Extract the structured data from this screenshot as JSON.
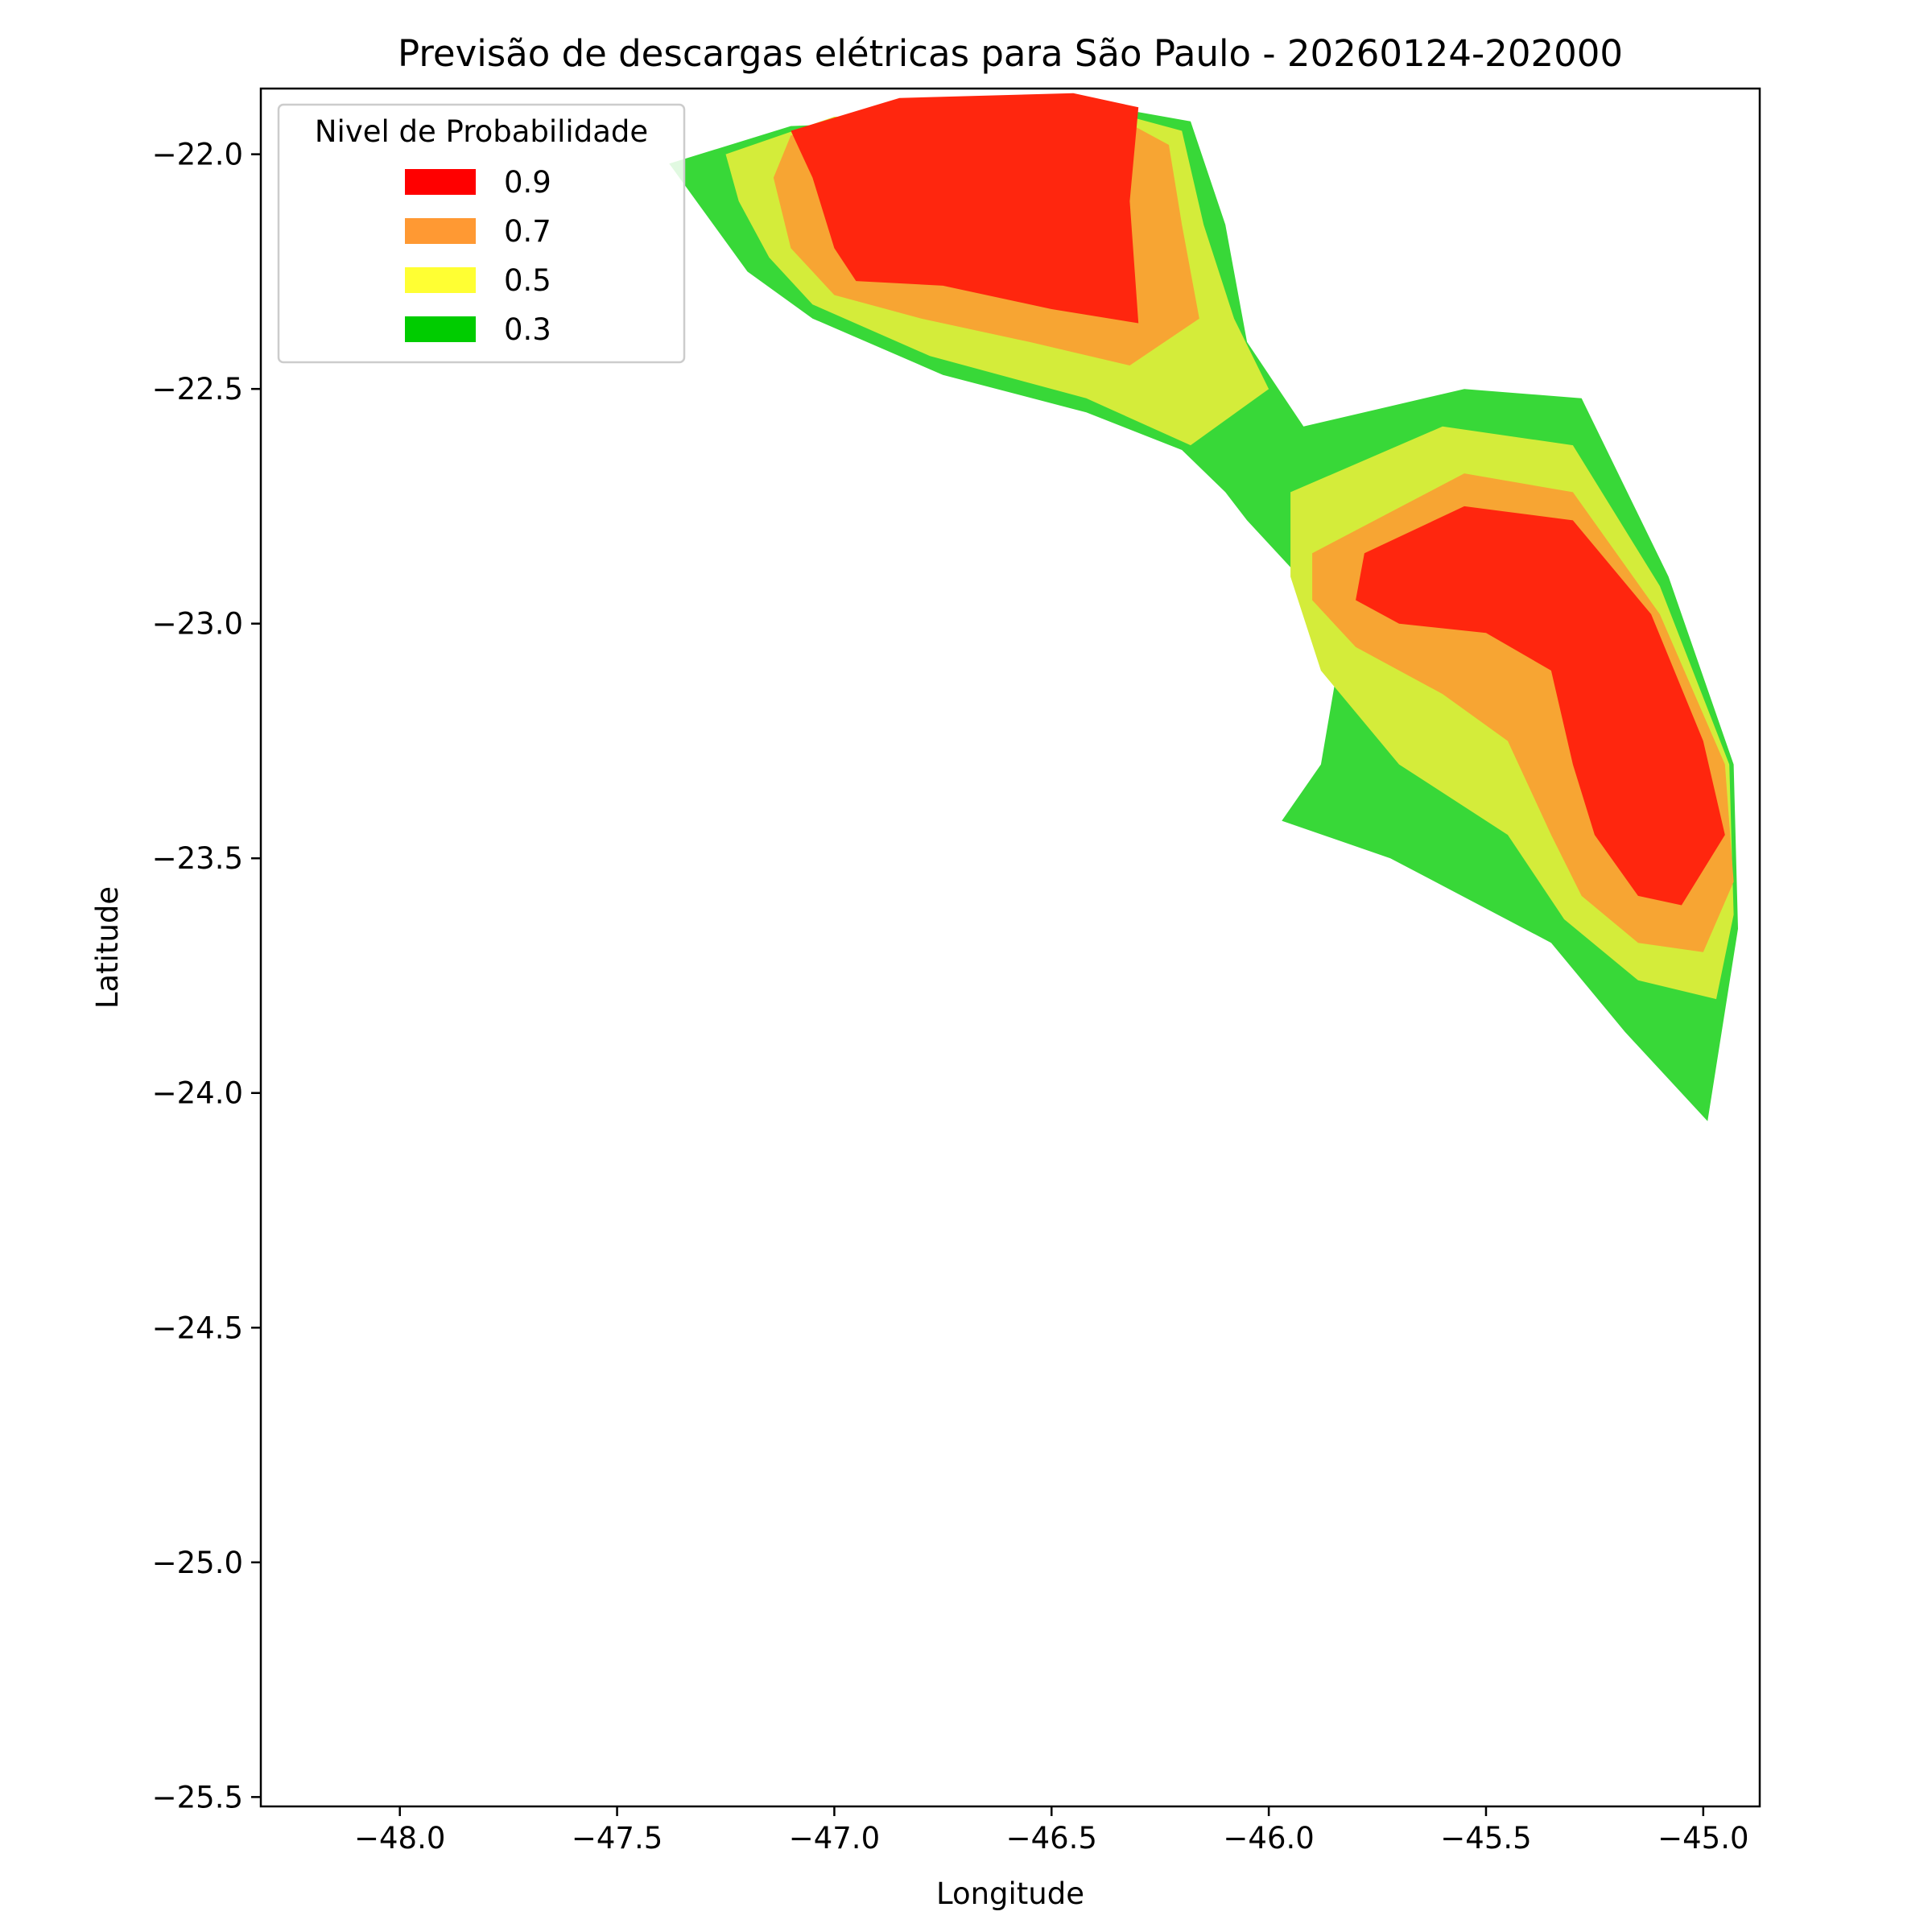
{
  "chart_data": {
    "type": "filled-contour-map",
    "title": "Previsão de descargas elétricas para São Paulo - 20260124-202000",
    "xlabel": "Longitude",
    "ylabel": "Latitude",
    "xlim": [
      -48.32,
      -44.87
    ],
    "ylim": [
      -25.52,
      -21.86
    ],
    "x_ticks": [
      -48.0,
      -47.5,
      -47.0,
      -46.5,
      -46.0,
      -45.5,
      -45.0
    ],
    "x_tick_labels": [
      "−48.0",
      "−47.5",
      "−47.0",
      "−46.5",
      "−46.0",
      "−45.5",
      "−45.0"
    ],
    "y_ticks": [
      -22.0,
      -22.5,
      -23.0,
      -23.5,
      -24.0,
      -24.5,
      -25.0,
      -25.5
    ],
    "y_tick_labels": [
      "−22.0",
      "−22.5",
      "−23.0",
      "−23.5",
      "−24.0",
      "−24.5",
      "−25.0",
      "−25.5"
    ],
    "grid": false,
    "legend": {
      "title": "Nivel de Probabilidade",
      "placement": "upper-left",
      "entries": [
        {
          "label": "0.9",
          "color": "#ff0000"
        },
        {
          "label": "0.7",
          "color": "#ff9933"
        },
        {
          "label": "0.5",
          "color": "#ffff33"
        },
        {
          "label": "0.3",
          "color": "#00cc00"
        }
      ]
    },
    "levels": [
      {
        "level": 0.3,
        "color": "#38d838",
        "regions": [
          [
            [
              -47.38,
              -22.02
            ],
            [
              -47.1,
              -21.94
            ],
            [
              -46.3,
              -21.91
            ],
            [
              -46.18,
              -21.93
            ],
            [
              -46.1,
              -22.15
            ],
            [
              -46.05,
              -22.4
            ],
            [
              -45.92,
              -22.58
            ],
            [
              -45.55,
              -22.5
            ],
            [
              -45.28,
              -22.52
            ],
            [
              -45.08,
              -22.9
            ],
            [
              -44.93,
              -23.3
            ],
            [
              -44.92,
              -23.65
            ],
            [
              -44.99,
              -24.06
            ],
            [
              -45.18,
              -23.87
            ],
            [
              -45.35,
              -23.68
            ],
            [
              -45.72,
              -23.5
            ],
            [
              -45.97,
              -23.42
            ],
            [
              -45.88,
              -23.3
            ],
            [
              -45.83,
              -23.03
            ],
            [
              -45.88,
              -22.95
            ],
            [
              -46.05,
              -22.78
            ],
            [
              -46.1,
              -22.72
            ],
            [
              -46.2,
              -22.63
            ],
            [
              -46.42,
              -22.55
            ],
            [
              -46.75,
              -22.47
            ],
            [
              -47.05,
              -22.35
            ],
            [
              -47.2,
              -22.25
            ]
          ]
        ]
      },
      {
        "level": 0.5,
        "color": "#d4ec3a",
        "regions": [
          [
            [
              -47.25,
              -22.0
            ],
            [
              -47.0,
              -21.92
            ],
            [
              -46.32,
              -21.92
            ],
            [
              -46.2,
              -21.95
            ],
            [
              -46.15,
              -22.15
            ],
            [
              -46.08,
              -22.35
            ],
            [
              -46.0,
              -22.5
            ],
            [
              -46.18,
              -22.62
            ],
            [
              -46.42,
              -22.52
            ],
            [
              -46.78,
              -22.43
            ],
            [
              -47.05,
              -22.32
            ],
            [
              -47.15,
              -22.22
            ],
            [
              -47.22,
              -22.1
            ]
          ],
          [
            [
              -45.95,
              -22.72
            ],
            [
              -45.6,
              -22.58
            ],
            [
              -45.3,
              -22.62
            ],
            [
              -45.1,
              -22.92
            ],
            [
              -44.94,
              -23.3
            ],
            [
              -44.93,
              -23.62
            ],
            [
              -44.97,
              -23.8
            ],
            [
              -45.15,
              -23.76
            ],
            [
              -45.32,
              -23.63
            ],
            [
              -45.45,
              -23.45
            ],
            [
              -45.7,
              -23.3
            ],
            [
              -45.88,
              -23.1
            ],
            [
              -45.95,
              -22.9
            ]
          ]
        ]
      },
      {
        "level": 0.7,
        "color": "#f7a533",
        "regions": [
          [
            [
              -47.1,
              -21.96
            ],
            [
              -46.9,
              -21.92
            ],
            [
              -46.35,
              -21.92
            ],
            [
              -46.23,
              -21.98
            ],
            [
              -46.2,
              -22.15
            ],
            [
              -46.16,
              -22.35
            ],
            [
              -46.32,
              -22.45
            ],
            [
              -46.55,
              -22.4
            ],
            [
              -46.8,
              -22.35
            ],
            [
              -47.0,
              -22.3
            ],
            [
              -47.1,
              -22.2
            ],
            [
              -47.14,
              -22.05
            ]
          ],
          [
            [
              -45.9,
              -22.85
            ],
            [
              -45.55,
              -22.68
            ],
            [
              -45.3,
              -22.72
            ],
            [
              -45.1,
              -22.98
            ],
            [
              -44.95,
              -23.3
            ],
            [
              -44.93,
              -23.55
            ],
            [
              -45.0,
              -23.7
            ],
            [
              -45.15,
              -23.68
            ],
            [
              -45.28,
              -23.58
            ],
            [
              -45.35,
              -23.45
            ],
            [
              -45.45,
              -23.25
            ],
            [
              -45.6,
              -23.15
            ],
            [
              -45.8,
              -23.05
            ],
            [
              -45.9,
              -22.95
            ]
          ]
        ]
      },
      {
        "level": 0.9,
        "color": "#ff260e",
        "regions": [
          [
            [
              -47.1,
              -21.95
            ],
            [
              -46.85,
              -21.88
            ],
            [
              -46.45,
              -21.87
            ],
            [
              -46.3,
              -21.9
            ],
            [
              -46.32,
              -22.1
            ],
            [
              -46.3,
              -22.36
            ],
            [
              -46.5,
              -22.33
            ],
            [
              -46.75,
              -22.28
            ],
            [
              -46.95,
              -22.27
            ],
            [
              -47.0,
              -22.2
            ],
            [
              -47.05,
              -22.05
            ]
          ],
          [
            [
              -45.78,
              -22.85
            ],
            [
              -45.55,
              -22.75
            ],
            [
              -45.3,
              -22.78
            ],
            [
              -45.12,
              -22.98
            ],
            [
              -45.0,
              -23.25
            ],
            [
              -44.95,
              -23.45
            ],
            [
              -45.05,
              -23.6
            ],
            [
              -45.15,
              -23.58
            ],
            [
              -45.25,
              -23.45
            ],
            [
              -45.3,
              -23.3
            ],
            [
              -45.35,
              -23.1
            ],
            [
              -45.5,
              -23.02
            ],
            [
              -45.7,
              -23.0
            ],
            [
              -45.8,
              -22.95
            ]
          ]
        ]
      }
    ]
  }
}
